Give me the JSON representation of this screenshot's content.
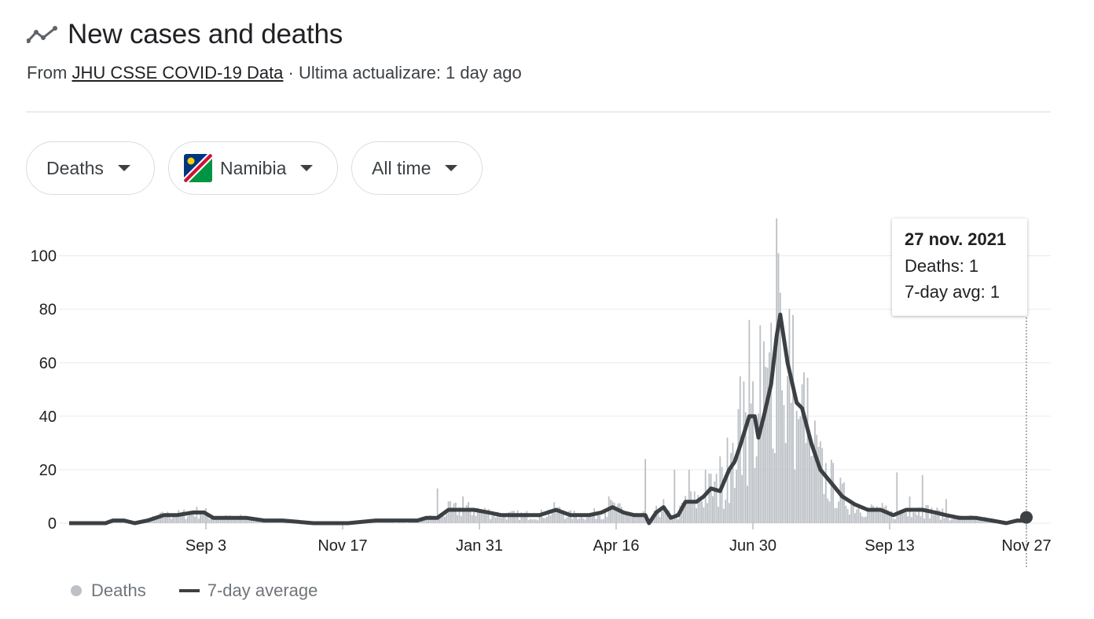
{
  "header": {
    "title": "New cases and deaths",
    "source_prefix": "From",
    "source_link": "JHU CSSE COVID-19 Data",
    "source_suffix": "· Ultima actualizare: 1 day ago"
  },
  "filters": {
    "metric": "Deaths",
    "country": "Namibia",
    "range": "All time"
  },
  "tooltip": {
    "date": "27 nov. 2021",
    "deaths": "Deaths: 1",
    "avg": "7-day avg: 1"
  },
  "legend": {
    "bars": "Deaths",
    "line": "7-day average"
  },
  "colors": {
    "bars": "#bdc1c6",
    "line": "#3c4043",
    "grid": "#e8eaed",
    "flag_blue": "#003580",
    "flag_red": "#d21034",
    "flag_green": "#009543",
    "flag_sun": "#ffce00"
  },
  "chart_data": {
    "type": "bar",
    "x_start": "2020-06-20",
    "x_end": "2021-11-27",
    "ylim": [
      0,
      114
    ],
    "y_ticks": [
      "0",
      "20",
      "40",
      "60",
      "80",
      "100"
    ],
    "y_tick_values": [
      0,
      20,
      40,
      60,
      80,
      100
    ],
    "x_ticks": [
      "Sep 3",
      "Nov 17",
      "Jan 31",
      "Apr 16",
      "Jun 30",
      "Sep 13",
      "Nov 27"
    ],
    "x_tick_dates": [
      "2020-09-03",
      "2020-11-17",
      "2021-01-31",
      "2021-04-16",
      "2021-06-30",
      "2021-09-13",
      "2021-11-27"
    ],
    "bar_peaks": [
      [
        "2021-05-02",
        24
      ],
      [
        "2021-05-18",
        20
      ],
      [
        "2021-05-26",
        20
      ],
      [
        "2021-06-04",
        20
      ],
      [
        "2021-06-12",
        25
      ],
      [
        "2021-06-16",
        32
      ],
      [
        "2021-06-19",
        30
      ],
      [
        "2021-06-21",
        20
      ],
      [
        "2021-06-23",
        55
      ],
      [
        "2021-06-25",
        53
      ],
      [
        "2021-06-28",
        76
      ],
      [
        "2021-07-02",
        25
      ],
      [
        "2021-07-04",
        74
      ],
      [
        "2021-07-06",
        68
      ],
      [
        "2021-07-10",
        75
      ],
      [
        "2021-07-13",
        114
      ],
      [
        "2021-07-14",
        101
      ],
      [
        "2021-07-18",
        30
      ],
      [
        "2021-07-19",
        55
      ],
      [
        "2021-07-21",
        45
      ],
      [
        "2021-07-24",
        42
      ],
      [
        "2021-07-26",
        40
      ],
      [
        "2021-07-29",
        30
      ],
      [
        "2021-08-01",
        25
      ],
      [
        "2021-09-17",
        19
      ],
      [
        "2021-09-24",
        10
      ],
      [
        "2021-10-01",
        18
      ],
      [
        "2021-10-14",
        9
      ],
      [
        "2021-01-08",
        13
      ],
      [
        "2021-01-22",
        10
      ],
      [
        "2021-04-12",
        10
      ]
    ],
    "series_line": [
      [
        "2020-06-20",
        0
      ],
      [
        "2020-07-10",
        0
      ],
      [
        "2020-07-14",
        1
      ],
      [
        "2020-07-20",
        1
      ],
      [
        "2020-07-26",
        0
      ],
      [
        "2020-08-02",
        1
      ],
      [
        "2020-08-11",
        3
      ],
      [
        "2020-08-18",
        3
      ],
      [
        "2020-08-27",
        4
      ],
      [
        "2020-09-02",
        4
      ],
      [
        "2020-09-07",
        2
      ],
      [
        "2020-09-15",
        2
      ],
      [
        "2020-09-25",
        2
      ],
      [
        "2020-10-05",
        1
      ],
      [
        "2020-10-15",
        1
      ],
      [
        "2020-11-01",
        0
      ],
      [
        "2020-11-20",
        0
      ],
      [
        "2020-12-05",
        1
      ],
      [
        "2020-12-15",
        1
      ],
      [
        "2020-12-22",
        1
      ],
      [
        "2020-12-28",
        1
      ],
      [
        "2021-01-02",
        2
      ],
      [
        "2021-01-08",
        2
      ],
      [
        "2021-01-14",
        5
      ],
      [
        "2021-01-20",
        5
      ],
      [
        "2021-01-28",
        5
      ],
      [
        "2021-02-05",
        4
      ],
      [
        "2021-02-12",
        3
      ],
      [
        "2021-02-22",
        3
      ],
      [
        "2021-03-05",
        3
      ],
      [
        "2021-03-14",
        5
      ],
      [
        "2021-03-22",
        3
      ],
      [
        "2021-04-01",
        3
      ],
      [
        "2021-04-08",
        4
      ],
      [
        "2021-04-14",
        6
      ],
      [
        "2021-04-20",
        4
      ],
      [
        "2021-04-26",
        3
      ],
      [
        "2021-05-02",
        3
      ],
      [
        "2021-05-04",
        0
      ],
      [
        "2021-05-08",
        4
      ],
      [
        "2021-05-12",
        6
      ],
      [
        "2021-05-16",
        2
      ],
      [
        "2021-05-20",
        3
      ],
      [
        "2021-05-24",
        8
      ],
      [
        "2021-05-30",
        8
      ],
      [
        "2021-06-03",
        10
      ],
      [
        "2021-06-07",
        13
      ],
      [
        "2021-06-12",
        12
      ],
      [
        "2021-06-17",
        20
      ],
      [
        "2021-06-20",
        23
      ],
      [
        "2021-06-23",
        29
      ],
      [
        "2021-06-28",
        40
      ],
      [
        "2021-07-01",
        40
      ],
      [
        "2021-07-03",
        32
      ],
      [
        "2021-07-06",
        40
      ],
      [
        "2021-07-10",
        52
      ],
      [
        "2021-07-13",
        70
      ],
      [
        "2021-07-15",
        78
      ],
      [
        "2021-07-19",
        60
      ],
      [
        "2021-07-24",
        45
      ],
      [
        "2021-07-27",
        43
      ],
      [
        "2021-08-01",
        30
      ],
      [
        "2021-08-06",
        20
      ],
      [
        "2021-08-12",
        15
      ],
      [
        "2021-08-18",
        10
      ],
      [
        "2021-08-25",
        7
      ],
      [
        "2021-09-01",
        5
      ],
      [
        "2021-09-08",
        5
      ],
      [
        "2021-09-15",
        3
      ],
      [
        "2021-09-22",
        5
      ],
      [
        "2021-10-01",
        5
      ],
      [
        "2021-10-08",
        4
      ],
      [
        "2021-10-14",
        3
      ],
      [
        "2021-10-21",
        2
      ],
      [
        "2021-10-30",
        2
      ],
      [
        "2021-11-08",
        1
      ],
      [
        "2021-11-16",
        0
      ],
      [
        "2021-11-22",
        1
      ],
      [
        "2021-11-27",
        1
      ]
    ]
  }
}
